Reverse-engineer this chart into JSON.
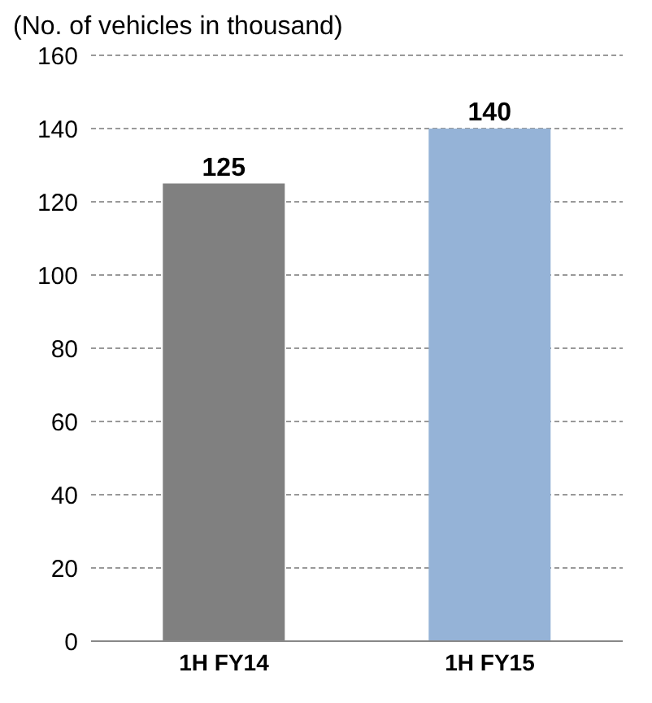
{
  "chart_data": {
    "type": "bar",
    "ylabel": "(No. of vehicles in thousand)",
    "categories": [
      "1H FY14",
      "1H FY15"
    ],
    "values": [
      125,
      140
    ],
    "colors": [
      "#808080",
      "#95b3d7"
    ],
    "ylim": [
      0,
      160
    ],
    "yticks": [
      0,
      20,
      40,
      60,
      80,
      100,
      120,
      140,
      160
    ],
    "grid": "y",
    "data_labels": true
  }
}
